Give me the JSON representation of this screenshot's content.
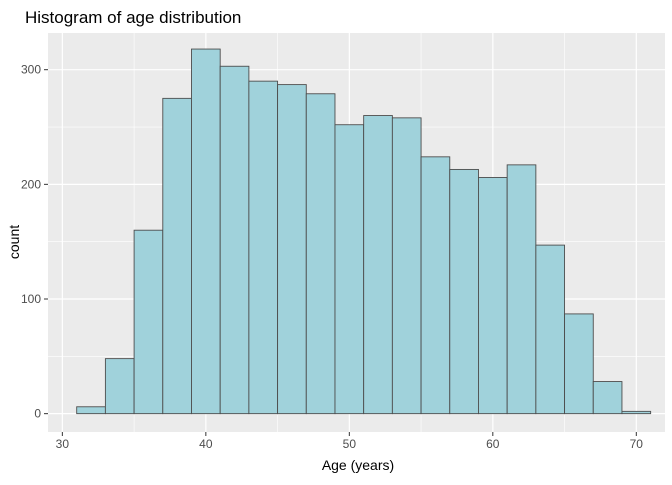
{
  "chart_data": {
    "type": "bar",
    "title": "Histogram of age distribution",
    "xlabel": "Age (years)",
    "ylabel": "count",
    "xlim": [
      29.0,
      72.0
    ],
    "ylim": [
      -16,
      332
    ],
    "x_ticks": [
      30,
      40,
      50,
      60,
      70
    ],
    "y_ticks": [
      0,
      100,
      200,
      300
    ],
    "grid": true,
    "bin_width": 2,
    "bins": [
      {
        "x0": 31,
        "x1": 33,
        "count": 6
      },
      {
        "x0": 33,
        "x1": 35,
        "count": 48
      },
      {
        "x0": 35,
        "x1": 37,
        "count": 160
      },
      {
        "x0": 37,
        "x1": 39,
        "count": 275
      },
      {
        "x0": 39,
        "x1": 41,
        "count": 318
      },
      {
        "x0": 41,
        "x1": 43,
        "count": 303
      },
      {
        "x0": 43,
        "x1": 45,
        "count": 290
      },
      {
        "x0": 45,
        "x1": 47,
        "count": 287
      },
      {
        "x0": 47,
        "x1": 49,
        "count": 279
      },
      {
        "x0": 49,
        "x1": 51,
        "count": 252
      },
      {
        "x0": 51,
        "x1": 53,
        "count": 260
      },
      {
        "x0": 53,
        "x1": 55,
        "count": 258
      },
      {
        "x0": 55,
        "x1": 57,
        "count": 224
      },
      {
        "x0": 57,
        "x1": 59,
        "count": 213
      },
      {
        "x0": 59,
        "x1": 61,
        "count": 206
      },
      {
        "x0": 61,
        "x1": 63,
        "count": 217
      },
      {
        "x0": 63,
        "x1": 65,
        "count": 147
      },
      {
        "x0": 65,
        "x1": 67,
        "count": 87
      },
      {
        "x0": 67,
        "x1": 69,
        "count": 28
      },
      {
        "x0": 69,
        "x1": 71,
        "count": 2
      }
    ],
    "colors": {
      "panel_background": "#EBEBEB",
      "grid_major": "#FFFFFF",
      "bar_fill": "#A0D2DB",
      "bar_stroke": "#4D4D4D",
      "tick_text": "#4D4D4D",
      "title_text": "#000000"
    }
  }
}
